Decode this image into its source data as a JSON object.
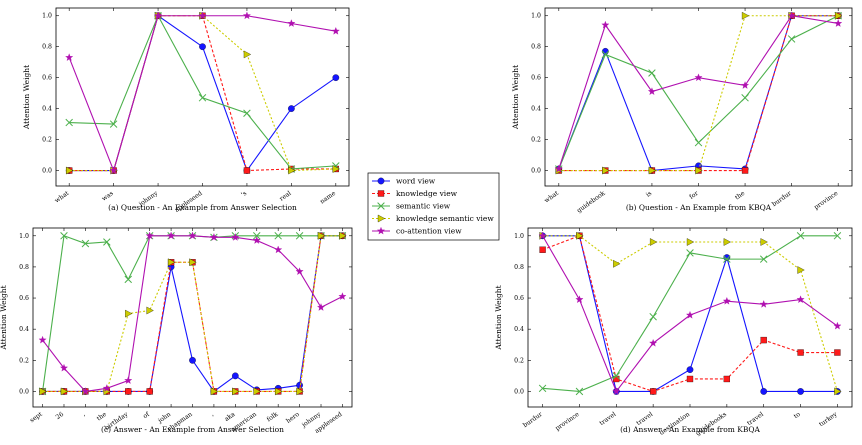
{
  "figure": {
    "legend": [
      {
        "key": "word",
        "label": "word view"
      },
      {
        "key": "knowledge",
        "label": "knowledge view"
      },
      {
        "key": "semantic",
        "label": "semantic view"
      },
      {
        "key": "ks",
        "label": "knowledge semantic view"
      },
      {
        "key": "co",
        "label": "co-attention view"
      }
    ],
    "styles": {
      "word": {
        "color": "#1515ff",
        "marker": "circle",
        "dash": ""
      },
      "knowledge": {
        "color": "#ff1a1a",
        "marker": "square",
        "dash": "3,2"
      },
      "semantic": {
        "color": "#4cb04c",
        "marker": "x",
        "dash": ""
      },
      "ks": {
        "color": "#cccc00",
        "marker": "triangle",
        "dash": "2,2"
      },
      "co": {
        "color": "#b010b0",
        "marker": "star",
        "dash": ""
      }
    }
  },
  "chart_data": [
    {
      "type": "line",
      "caption": "(a) Question - An Example from Answer Selection",
      "ylabel": "Attention Weight",
      "ylim": [
        -0.1,
        1.05
      ],
      "yticks": [
        "0.0",
        "0.2",
        "0.4",
        "0.6",
        "0.8",
        "1.0"
      ],
      "categories": [
        "what",
        "was",
        "johnny",
        "appleseed",
        "'s",
        "real",
        "name"
      ],
      "series": [
        {
          "key": "word",
          "name": "word view",
          "values": [
            0,
            0,
            1.0,
            0.8,
            0,
            0.4,
            0.6
          ]
        },
        {
          "key": "knowledge",
          "name": "knowledge view",
          "values": [
            0,
            0,
            1.0,
            1.0,
            0,
            0.01,
            0.01
          ]
        },
        {
          "key": "semantic",
          "name": "semantic view",
          "values": [
            0.31,
            0.3,
            1.0,
            0.47,
            0.37,
            0.01,
            0.03
          ]
        },
        {
          "key": "ks",
          "name": "knowledge semantic view",
          "values": [
            0,
            0,
            1.0,
            1.0,
            0.75,
            0.0,
            0.01
          ]
        },
        {
          "key": "co",
          "name": "co-attention view",
          "values": [
            0.73,
            0,
            1.0,
            1.0,
            1.0,
            0.95,
            0.9
          ]
        }
      ]
    },
    {
      "type": "line",
      "caption": "(b) Question - An Example from KBQA",
      "ylabel": "Attention Weight",
      "ylim": [
        -0.1,
        1.05
      ],
      "yticks": [
        "0.0",
        "0.2",
        "0.4",
        "0.6",
        "0.8",
        "1.0"
      ],
      "categories": [
        "what",
        "guidebook",
        "is",
        "for",
        "the",
        "burdur",
        "province"
      ],
      "series": [
        {
          "key": "word",
          "name": "word view",
          "values": [
            0.01,
            0.77,
            0,
            0.03,
            0.01,
            1.0,
            1.0
          ]
        },
        {
          "key": "knowledge",
          "name": "knowledge view",
          "values": [
            0,
            0,
            0,
            0,
            0,
            1.0,
            1.0
          ]
        },
        {
          "key": "semantic",
          "name": "semantic view",
          "values": [
            0.01,
            0.75,
            0.63,
            0.18,
            0.47,
            0.85,
            1.0
          ]
        },
        {
          "key": "ks",
          "name": "knowledge semantic view",
          "values": [
            0,
            0,
            0,
            0,
            1.0,
            1.0,
            1.0
          ]
        },
        {
          "key": "co",
          "name": "co-attention view",
          "values": [
            0.01,
            0.94,
            0.51,
            0.6,
            0.55,
            1.0,
            0.95
          ]
        }
      ]
    },
    {
      "type": "line",
      "caption": "(c) Answer - An Example from Answer Selection",
      "ylabel": "Attention Weight",
      "ylim": [
        -0.1,
        1.05
      ],
      "yticks": [
        "0.0",
        "0.2",
        "0.4",
        "0.6",
        "0.8",
        "1.0"
      ],
      "categories": [
        "sept",
        "26",
        ",",
        "the",
        "birthday",
        "of",
        "john",
        "chapman",
        ",",
        "aka",
        "american",
        "folk",
        "hero",
        "johnny",
        "appleseed"
      ],
      "series": [
        {
          "key": "word",
          "name": "word view",
          "values": [
            0,
            0,
            0,
            0,
            0,
            0,
            0.8,
            0.2,
            0,
            0.1,
            0.01,
            0.02,
            0.04,
            1.0,
            1.0
          ]
        },
        {
          "key": "knowledge",
          "name": "knowledge view",
          "values": [
            0,
            0,
            0,
            0,
            0,
            0,
            0.83,
            0.83,
            0,
            0,
            0,
            0,
            0,
            1.0,
            1.0
          ]
        },
        {
          "key": "semantic",
          "name": "semantic view",
          "values": [
            0,
            1.0,
            0.95,
            0.96,
            0.72,
            1.0,
            1.0,
            1.0,
            0.99,
            1.0,
            1.0,
            1.0,
            1.0,
            1.0,
            1.0
          ]
        },
        {
          "key": "ks",
          "name": "knowledge semantic view",
          "values": [
            0,
            0,
            0,
            0,
            0.5,
            0.52,
            0.83,
            0.83,
            0,
            0,
            0,
            0,
            0,
            1.0,
            1.0
          ]
        },
        {
          "key": "co",
          "name": "co-attention view",
          "values": [
            0.33,
            0.15,
            0.0,
            0.02,
            0.07,
            1.0,
            1.0,
            1.0,
            0.99,
            0.99,
            0.97,
            0.91,
            0.77,
            0.54,
            0.61
          ]
        }
      ]
    },
    {
      "type": "line",
      "caption": "(d) Answer - An Example from KBQA",
      "ylabel": "Attention Weight",
      "ylim": [
        -0.1,
        1.05
      ],
      "yticks": [
        "0.0",
        "0.2",
        "0.4",
        "0.6",
        "0.8",
        "1.0"
      ],
      "categories": [
        "burdur",
        "province",
        "travel",
        "travel",
        "destination",
        "guidebooks",
        "travel",
        "to",
        "turkey"
      ],
      "series": [
        {
          "key": "word",
          "name": "word view",
          "values": [
            1.0,
            1.0,
            0,
            0,
            0.14,
            0.86,
            0,
            0,
            0
          ]
        },
        {
          "key": "knowledge",
          "name": "knowledge view",
          "values": [
            0.91,
            1.0,
            0.08,
            0,
            0.08,
            0.08,
            0.33,
            0.25,
            0.25
          ]
        },
        {
          "key": "semantic",
          "name": "semantic view",
          "values": [
            0.02,
            0,
            0.1,
            0.48,
            0.89,
            0.85,
            0.85,
            1.0,
            1.0
          ]
        },
        {
          "key": "ks",
          "name": "knowledge semantic view",
          "values": [
            1.0,
            1.0,
            0.82,
            0.96,
            0.96,
            0.96,
            0.96,
            0.78,
            0
          ]
        },
        {
          "key": "co",
          "name": "co-attention view",
          "values": [
            1.0,
            0.59,
            0,
            0.31,
            0.49,
            0.58,
            0.56,
            0.59,
            0.42
          ]
        }
      ]
    }
  ]
}
